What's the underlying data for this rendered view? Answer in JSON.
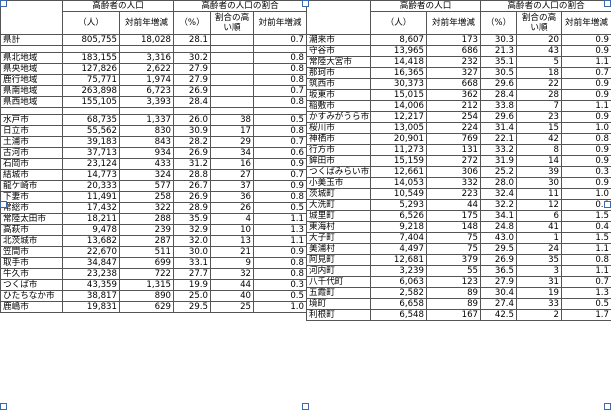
{
  "headers": {
    "population": "高齢者の人口",
    "ratio": "高齢者の人口の割合",
    "unit_people": "（人）",
    "yoy": "対前年増減",
    "unit_pct": "（%）",
    "rank": "割合の高い順"
  },
  "left": {
    "summary": [
      {
        "name": "県計",
        "pop": "805,755",
        "chg": "18,028",
        "pct": "28.1",
        "rank": "",
        "pctchg": "0.7"
      }
    ],
    "regions": [
      {
        "name": "県北地域",
        "pop": "183,155",
        "chg": "3,316",
        "pct": "30.2",
        "rank": "",
        "pctchg": "0.8"
      },
      {
        "name": "県央地域",
        "pop": "127,826",
        "chg": "2,622",
        "pct": "27.9",
        "rank": "",
        "pctchg": "0.8"
      },
      {
        "name": "鹿行地域",
        "pop": "75,771",
        "chg": "1,974",
        "pct": "27.9",
        "rank": "",
        "pctchg": "0.8"
      },
      {
        "name": "県南地域",
        "pop": "263,898",
        "chg": "6,723",
        "pct": "26.9",
        "rank": "",
        "pctchg": "0.7"
      },
      {
        "name": "県西地域",
        "pop": "155,105",
        "chg": "3,393",
        "pct": "28.4",
        "rank": "",
        "pctchg": "0.8"
      }
    ],
    "cities": [
      {
        "name": "水戸市",
        "pop": "68,735",
        "chg": "1,337",
        "pct": "26.0",
        "rank": "38",
        "pctchg": "0.5"
      },
      {
        "name": "日立市",
        "pop": "55,562",
        "chg": "830",
        "pct": "30.9",
        "rank": "17",
        "pctchg": "0.8"
      },
      {
        "name": "土浦市",
        "pop": "39,183",
        "chg": "843",
        "pct": "28.2",
        "rank": "29",
        "pctchg": "0.7"
      },
      {
        "name": "古河市",
        "pop": "37,713",
        "chg": "934",
        "pct": "26.9",
        "rank": "34",
        "pctchg": "0.6"
      },
      {
        "name": "石岡市",
        "pop": "23,124",
        "chg": "433",
        "pct": "31.2",
        "rank": "16",
        "pctchg": "0.9"
      },
      {
        "name": "結城市",
        "pop": "14,773",
        "chg": "324",
        "pct": "28.8",
        "rank": "27",
        "pctchg": "0.7"
      },
      {
        "name": "龍ケ崎市",
        "pop": "20,333",
        "chg": "577",
        "pct": "26.7",
        "rank": "37",
        "pctchg": "0.9"
      },
      {
        "name": "下妻市",
        "pop": "11,491",
        "chg": "258",
        "pct": "26.9",
        "rank": "36",
        "pctchg": "0.8"
      },
      {
        "name": "常総市",
        "pop": "17,432",
        "chg": "322",
        "pct": "28.9",
        "rank": "26",
        "pctchg": "0.5"
      },
      {
        "name": "常陸太田市",
        "pop": "18,211",
        "chg": "288",
        "pct": "35.9",
        "rank": "4",
        "pctchg": "1.1"
      },
      {
        "name": "高萩市",
        "pop": "9,478",
        "chg": "239",
        "pct": "32.9",
        "rank": "10",
        "pctchg": "1.3"
      },
      {
        "name": "北茨城市",
        "pop": "13,682",
        "chg": "287",
        "pct": "32.0",
        "rank": "13",
        "pctchg": "1.1"
      },
      {
        "name": "笠間市",
        "pop": "22,670",
        "chg": "511",
        "pct": "30.0",
        "rank": "21",
        "pctchg": "0.9"
      },
      {
        "name": "取手市",
        "pop": "34,847",
        "chg": "699",
        "pct": "33.1",
        "rank": "9",
        "pctchg": "0.8"
      },
      {
        "name": "牛久市",
        "pop": "23,238",
        "chg": "722",
        "pct": "27.7",
        "rank": "32",
        "pctchg": "0.8"
      },
      {
        "name": "つくば市",
        "pop": "43,359",
        "chg": "1,315",
        "pct": "19.9",
        "rank": "44",
        "pctchg": "0.3"
      },
      {
        "name": "ひたちなか市",
        "pop": "38,817",
        "chg": "890",
        "pct": "25.0",
        "rank": "40",
        "pctchg": "0.5",
        "small": true
      },
      {
        "name": "鹿嶋市",
        "pop": "19,831",
        "chg": "629",
        "pct": "29.5",
        "rank": "25",
        "pctchg": "1.0"
      }
    ]
  },
  "right": {
    "rows": [
      {
        "name": "潮来市",
        "pop": "8,607",
        "chg": "173",
        "pct": "30.3",
        "rank": "20",
        "pctchg": "0.9"
      },
      {
        "name": "守谷市",
        "pop": "13,965",
        "chg": "686",
        "pct": "21.3",
        "rank": "43",
        "pctchg": "0.9"
      },
      {
        "name": "常陸大宮市",
        "pop": "14,418",
        "chg": "232",
        "pct": "35.1",
        "rank": "5",
        "pctchg": "1.1"
      },
      {
        "name": "那珂市",
        "pop": "16,365",
        "chg": "327",
        "pct": "30.5",
        "rank": "18",
        "pctchg": "0.7"
      },
      {
        "name": "筑西市",
        "pop": "30,373",
        "chg": "668",
        "pct": "29.6",
        "rank": "22",
        "pctchg": "0.9"
      },
      {
        "name": "坂東市",
        "pop": "15,015",
        "chg": "362",
        "pct": "28.4",
        "rank": "28",
        "pctchg": "0.9"
      },
      {
        "name": "稲敷市",
        "pop": "14,006",
        "chg": "212",
        "pct": "33.8",
        "rank": "7",
        "pctchg": "1.1"
      },
      {
        "name": "かすみがうら市",
        "pop": "12,217",
        "chg": "254",
        "pct": "29.6",
        "rank": "23",
        "pctchg": "0.9",
        "small": true
      },
      {
        "name": "桜川市",
        "pop": "13,005",
        "chg": "224",
        "pct": "31.4",
        "rank": "15",
        "pctchg": "1.0"
      },
      {
        "name": "神栖市",
        "pop": "20,901",
        "chg": "769",
        "pct": "22.1",
        "rank": "42",
        "pctchg": "0.8"
      },
      {
        "name": "行方市",
        "pop": "11,273",
        "chg": "131",
        "pct": "33.2",
        "rank": "8",
        "pctchg": "0.9"
      },
      {
        "name": "鉾田市",
        "pop": "15,159",
        "chg": "272",
        "pct": "31.9",
        "rank": "14",
        "pctchg": "0.9"
      },
      {
        "name": "つくばみらい市",
        "pop": "12,661",
        "chg": "306",
        "pct": "25.2",
        "rank": "39",
        "pctchg": "0.3",
        "small": true
      },
      {
        "name": "小美玉市",
        "pop": "14,053",
        "chg": "332",
        "pct": "28.0",
        "rank": "30",
        "pctchg": "0.9"
      },
      {
        "name": "茨城町",
        "pop": "10,549",
        "chg": "223",
        "pct": "32.4",
        "rank": "11",
        "pctchg": "1.0"
      },
      {
        "name": "大洗町",
        "pop": "5,293",
        "chg": "44",
        "pct": "32.2",
        "rank": "12",
        "pctchg": "0.6"
      },
      {
        "name": "城里町",
        "pop": "6,526",
        "chg": "175",
        "pct": "34.1",
        "rank": "6",
        "pctchg": "1.5"
      },
      {
        "name": "東海村",
        "pop": "9,218",
        "chg": "148",
        "pct": "24.8",
        "rank": "41",
        "pctchg": "0.4"
      },
      {
        "name": "大子町",
        "pop": "7,404",
        "chg": "75",
        "pct": "43.0",
        "rank": "1",
        "pctchg": "1.5"
      },
      {
        "name": "美浦村",
        "pop": "4,497",
        "chg": "75",
        "pct": "29.5",
        "rank": "24",
        "pctchg": "1.1"
      },
      {
        "name": "阿見町",
        "pop": "12,681",
        "chg": "379",
        "pct": "26.9",
        "rank": "35",
        "pctchg": "0.8"
      },
      {
        "name": "河内町",
        "pop": "3,239",
        "chg": "55",
        "pct": "36.5",
        "rank": "3",
        "pctchg": "1.1"
      },
      {
        "name": "八千代町",
        "pop": "6,063",
        "chg": "123",
        "pct": "27.9",
        "rank": "31",
        "pctchg": "0.7"
      },
      {
        "name": "五霞町",
        "pop": "2,582",
        "chg": "89",
        "pct": "30.4",
        "rank": "19",
        "pctchg": "1.3"
      },
      {
        "name": "境町",
        "pop": "6,658",
        "chg": "89",
        "pct": "27.4",
        "rank": "33",
        "pctchg": "0.5"
      },
      {
        "name": "利根町",
        "pop": "6,548",
        "chg": "167",
        "pct": "42.5",
        "rank": "2",
        "pctchg": "1.7"
      }
    ]
  }
}
